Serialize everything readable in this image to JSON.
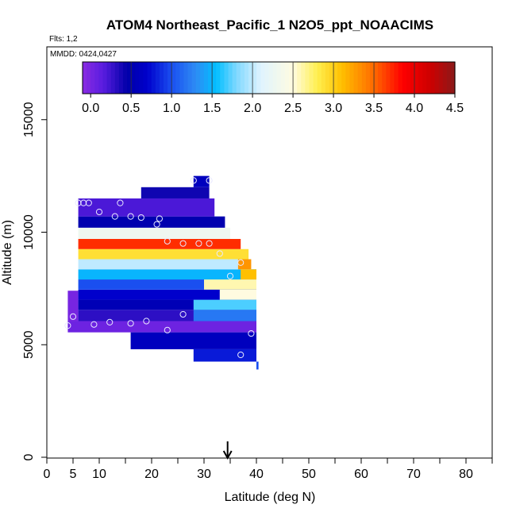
{
  "chart_data": {
    "type": "heatmap",
    "title": "ATOM4 Northeast_Pacific_1 N2O5_ppt_NOAACIMS",
    "annotations": {
      "flights": "Flts: 1,2",
      "dates": "MMDD: 0424,0427"
    },
    "xlabel": "Latitude (deg N)",
    "ylabel": "Altitude (m)",
    "xlim": [
      0,
      85
    ],
    "ylim": [
      0,
      18000
    ],
    "x_ticks": [
      0,
      5,
      10,
      20,
      30,
      40,
      50,
      60,
      70,
      80
    ],
    "x_tick_labels": [
      "0",
      "5",
      "10",
      "20",
      "30",
      "40",
      "50",
      "60",
      "70",
      "80"
    ],
    "x_minor_ticks": [
      15,
      25,
      35,
      45,
      55,
      65,
      75,
      85
    ],
    "y_ticks": [
      0,
      5000,
      10000,
      15000
    ],
    "y_tick_labels": [
      "0",
      "5000",
      "10000",
      "15000"
    ],
    "colorbar": {
      "min": -0.1,
      "max": 4.5,
      "ticks": [
        0.0,
        0.5,
        1.0,
        1.5,
        2.0,
        2.5,
        3.0,
        3.5,
        4.0,
        4.5
      ],
      "tick_labels": [
        "0.0",
        "0.5",
        "1.0",
        "1.5",
        "2.0",
        "2.5",
        "3.0",
        "3.5",
        "4.0",
        "4.5"
      ]
    },
    "colorscale": [
      [
        -0.1,
        "#8a2be2"
      ],
      [
        0.15,
        "#5a1de0"
      ],
      [
        0.45,
        "#0000a8"
      ],
      [
        0.7,
        "#0000cc"
      ],
      [
        1.0,
        "#1a4ff0"
      ],
      [
        1.3,
        "#2e8cf4"
      ],
      [
        1.55,
        "#00bfff"
      ],
      [
        1.8,
        "#7fd8ff"
      ],
      [
        2.1,
        "#dff3ff"
      ],
      [
        2.5,
        "#fffbe0"
      ],
      [
        2.8,
        "#ffef50"
      ],
      [
        3.1,
        "#ffc000"
      ],
      [
        3.5,
        "#ff6a00"
      ],
      [
        3.85,
        "#ff0000"
      ],
      [
        4.2,
        "#cc0000"
      ],
      [
        4.5,
        "#8b1a1a"
      ]
    ],
    "cells": [
      {
        "lat_min": 4.0,
        "lat_max": 40.0,
        "alt_min": 5550,
        "alt_max": 6050,
        "value": 0.05
      },
      {
        "lat_min": 16.0,
        "lat_max": 40.0,
        "alt_min": 4800,
        "alt_max": 5550,
        "value": 0.6
      },
      {
        "lat_min": 28.0,
        "lat_max": 40.0,
        "alt_min": 4250,
        "alt_max": 4800,
        "value": 0.8
      },
      {
        "lat_min": 40.0,
        "lat_max": 40.4,
        "alt_min": 3900,
        "alt_max": 4250,
        "value": 1.0
      },
      {
        "lat_min": 4.0,
        "lat_max": 6.0,
        "alt_min": 6050,
        "alt_max": 7400,
        "value": 0.0
      },
      {
        "lat_min": 6.0,
        "lat_max": 40.0,
        "alt_min": 6050,
        "alt_max": 6550,
        "value": 0.3
      },
      {
        "lat_min": 28.0,
        "lat_max": 40.0,
        "alt_min": 6050,
        "alt_max": 6550,
        "value": 1.2
      },
      {
        "lat_min": 6.0,
        "lat_max": 40.0,
        "alt_min": 6550,
        "alt_max": 7000,
        "value": 0.55
      },
      {
        "lat_min": 28.0,
        "lat_max": 40.0,
        "alt_min": 6550,
        "alt_max": 7000,
        "value": 1.7
      },
      {
        "lat_min": 6.0,
        "lat_max": 40.0,
        "alt_min": 7000,
        "alt_max": 7450,
        "value": 0.7
      },
      {
        "lat_min": 33.0,
        "lat_max": 40.0,
        "alt_min": 7000,
        "alt_max": 7450,
        "value": 2.5
      },
      {
        "lat_min": 6.0,
        "lat_max": 40.0,
        "alt_min": 7450,
        "alt_max": 7900,
        "value": 1.0
      },
      {
        "lat_min": 30.0,
        "lat_max": 40.0,
        "alt_min": 7450,
        "alt_max": 7900,
        "value": 2.6
      },
      {
        "lat_min": 6.0,
        "lat_max": 40.0,
        "alt_min": 7900,
        "alt_max": 8350,
        "value": 1.5
      },
      {
        "lat_min": 37.0,
        "lat_max": 40.0,
        "alt_min": 7900,
        "alt_max": 8350,
        "value": 3.1
      },
      {
        "lat_min": 6.0,
        "lat_max": 39.0,
        "alt_min": 8350,
        "alt_max": 8800,
        "value": 2.0
      },
      {
        "lat_min": 36.5,
        "lat_max": 39.0,
        "alt_min": 8350,
        "alt_max": 8800,
        "value": 3.3
      },
      {
        "lat_min": 6.0,
        "lat_max": 38.5,
        "alt_min": 8800,
        "alt_max": 9250,
        "value": 2.9
      },
      {
        "lat_min": 6.0,
        "lat_max": 37.0,
        "alt_min": 9250,
        "alt_max": 9700,
        "value": 3.7
      },
      {
        "lat_min": 6.0,
        "lat_max": 35.0,
        "alt_min": 9700,
        "alt_max": 10200,
        "value": 2.3
      },
      {
        "lat_min": 6.0,
        "lat_max": 34.0,
        "alt_min": 10200,
        "alt_max": 10700,
        "value": 0.5
      },
      {
        "lat_min": 6.0,
        "lat_max": 32.0,
        "alt_min": 10700,
        "alt_max": 11500,
        "value": 0.2
      },
      {
        "lat_min": 18.0,
        "lat_max": 31.0,
        "alt_min": 11500,
        "alt_max": 12000,
        "value": 0.4
      },
      {
        "lat_min": 28.0,
        "lat_max": 31.0,
        "alt_min": 12000,
        "alt_max": 12500,
        "value": 0.6
      }
    ],
    "observations": [
      {
        "lat": 4.0,
        "alt": 5850
      },
      {
        "lat": 5.0,
        "alt": 6250
      },
      {
        "lat": 9.0,
        "alt": 5900
      },
      {
        "lat": 12.0,
        "alt": 6000
      },
      {
        "lat": 16.0,
        "alt": 5950
      },
      {
        "lat": 19.0,
        "alt": 6050
      },
      {
        "lat": 23.0,
        "alt": 5650
      },
      {
        "lat": 26.0,
        "alt": 6350
      },
      {
        "lat": 37.0,
        "alt": 4550
      },
      {
        "lat": 39.0,
        "alt": 5500
      },
      {
        "lat": 35.0,
        "alt": 8050
      },
      {
        "lat": 37.0,
        "alt": 8650
      },
      {
        "lat": 33.0,
        "alt": 9050
      },
      {
        "lat": 31.0,
        "alt": 9500
      },
      {
        "lat": 29.0,
        "alt": 9500
      },
      {
        "lat": 26.0,
        "alt": 9500
      },
      {
        "lat": 23.0,
        "alt": 9600
      },
      {
        "lat": 21.0,
        "alt": 10350
      },
      {
        "lat": 21.5,
        "alt": 10600
      },
      {
        "lat": 18.0,
        "alt": 10650
      },
      {
        "lat": 16.0,
        "alt": 10700
      },
      {
        "lat": 13.0,
        "alt": 10700
      },
      {
        "lat": 10.0,
        "alt": 10900
      },
      {
        "lat": 6.0,
        "alt": 11300
      },
      {
        "lat": 7.0,
        "alt": 11300
      },
      {
        "lat": 8.0,
        "alt": 11300
      },
      {
        "lat": 14.0,
        "alt": 11300
      },
      {
        "lat": 28.0,
        "alt": 12300
      },
      {
        "lat": 31.0,
        "alt": 12300
      }
    ],
    "arrow_lat": 34.5,
    "grid": false,
    "legend": "colorbar-top"
  }
}
